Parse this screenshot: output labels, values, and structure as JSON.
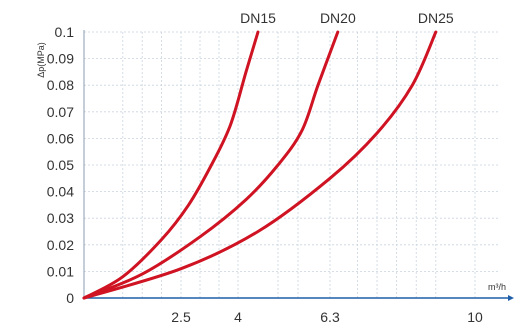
{
  "chart_data": {
    "type": "line",
    "ylabel": "Δp(MPa)",
    "xlabel": "m³/h",
    "ylim": [
      0,
      0.1
    ],
    "y_ticks": [
      0,
      0.01,
      0.02,
      0.03,
      0.04,
      0.05,
      0.06,
      0.07,
      0.08,
      0.09,
      0.1
    ],
    "y_tick_labels": [
      "0",
      "0.01",
      "0.02",
      "0.03",
      "0.04",
      "0.05",
      "0.06",
      "0.07",
      "0.08",
      "0.09",
      "0.1"
    ],
    "x_ticks": [
      2.5,
      4,
      6.3,
      10
    ],
    "x_tick_labels": [
      "2.5",
      "4",
      "6.3",
      "10"
    ],
    "grid": true,
    "colors": {
      "curve": "#cf1322",
      "axis": "#1f5fa8",
      "grid": "#c9d4e0"
    },
    "series": [
      {
        "name": "DN15",
        "x": [
          0,
          1.0,
          2.0,
          2.7,
          3.3,
          3.8,
          4.2,
          4.5
        ],
        "y": [
          0,
          0.008,
          0.022,
          0.035,
          0.05,
          0.065,
          0.085,
          0.1
        ]
      },
      {
        "name": "DN20",
        "x": [
          0,
          1.5,
          3.0,
          4.2,
          5.0,
          5.6,
          6.0,
          6.5
        ],
        "y": [
          0,
          0.009,
          0.023,
          0.037,
          0.05,
          0.063,
          0.08,
          0.1
        ]
      },
      {
        "name": "DN25",
        "x": [
          0,
          2.5,
          4.5,
          6.3,
          7.5,
          8.4,
          9.0
        ],
        "y": [
          0,
          0.011,
          0.025,
          0.045,
          0.062,
          0.08,
          0.1
        ]
      }
    ]
  }
}
